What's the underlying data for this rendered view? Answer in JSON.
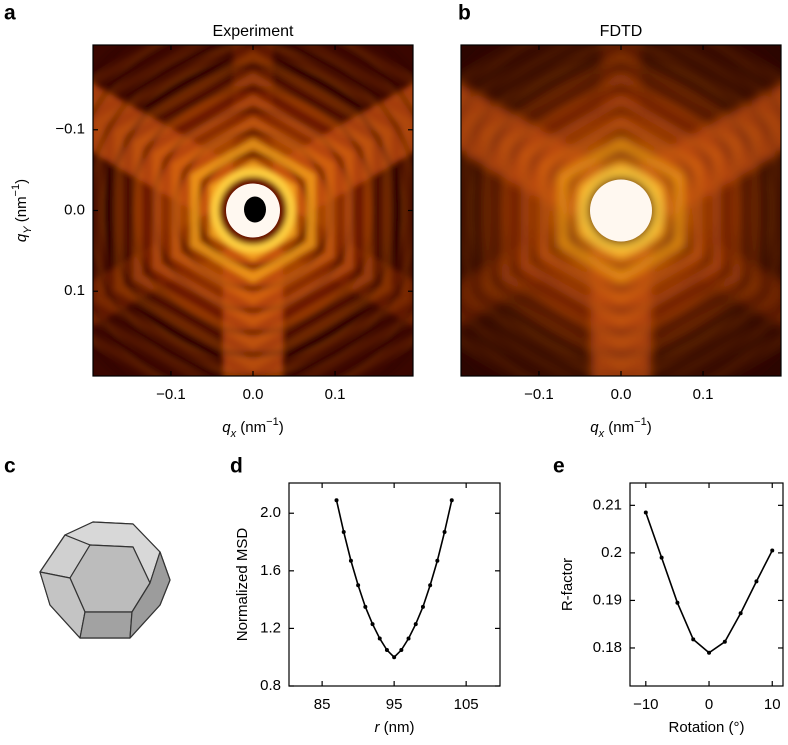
{
  "chart_data": [
    {
      "type": "image",
      "panel": "a",
      "title": "Experiment",
      "style": "experiment",
      "xlabel": [
        {
          "text": "q",
          "style": "italic"
        },
        {
          "text": "x",
          "style": "sub"
        },
        {
          "text": " (nm",
          "style": "plain"
        },
        {
          "text": "−1",
          "style": "sup"
        },
        {
          "text": ")",
          "style": "plain"
        }
      ],
      "ylabel": [
        {
          "text": "q",
          "style": "italic"
        },
        {
          "text": "Y",
          "style": "sub"
        },
        {
          "text": " (nm",
          "style": "plain"
        },
        {
          "text": "−1",
          "style": "sup"
        },
        {
          "text": ")",
          "style": "plain"
        }
      ],
      "xlim": [
        -0.195,
        0.195
      ],
      "ylim": [
        -0.205,
        0.205
      ],
      "y_inverted": true,
      "xticks": [
        {
          "value": -0.1,
          "label": "−0.1"
        },
        {
          "value": 0,
          "label": "0.0"
        },
        0.1
      ],
      "yticks": [
        {
          "value": -0.1,
          "label": "−0.1"
        },
        {
          "value": 0,
          "label": "0.0"
        },
        0.1
      ]
    },
    {
      "type": "image",
      "panel": "b",
      "title": "FDTD",
      "style": "simulation",
      "xlabel": [
        {
          "text": "q",
          "style": "italic"
        },
        {
          "text": "x",
          "style": "sub"
        },
        {
          "text": " (nm",
          "style": "plain"
        },
        {
          "text": "−1",
          "style": "sup"
        },
        {
          "text": ")",
          "style": "plain"
        }
      ],
      "xlim": [
        -0.195,
        0.195
      ],
      "ylim": [
        -0.205,
        0.205
      ],
      "y_inverted": true,
      "xticks": [
        {
          "value": -0.1,
          "label": "−0.1"
        },
        {
          "value": 0,
          "label": "0.0"
        },
        0.1
      ]
    },
    {
      "type": "illustration",
      "panel": "c"
    },
    {
      "type": "line",
      "panel": "d",
      "color": "#000000",
      "xlabel": [
        {
          "text": "r",
          "style": "italic"
        },
        {
          "text": " (nm)",
          "style": "plain"
        }
      ],
      "ylabel": [
        {
          "text": "Normalized MSD",
          "style": "plain"
        }
      ],
      "xlim": [
        80.4,
        109.7
      ],
      "ylim": [
        0.8,
        2.21
      ],
      "xticks": [
        85,
        95,
        105
      ],
      "yticks": [
        0.8,
        1.2,
        1.6,
        {
          "value": 2.0,
          "label": "2.0"
        }
      ],
      "x": [
        87,
        88,
        89,
        90,
        91,
        92,
        93,
        94,
        95,
        96,
        97,
        98,
        99,
        100,
        101,
        102,
        103
      ],
      "values": [
        2.09,
        1.87,
        1.67,
        1.5,
        1.35,
        1.23,
        1.13,
        1.05,
        1.0,
        1.05,
        1.13,
        1.23,
        1.35,
        1.5,
        1.67,
        1.87,
        2.09
      ]
    },
    {
      "type": "line",
      "panel": "e",
      "color": "#000000",
      "xlabel": [
        {
          "text": "Rotation (°)",
          "style": "plain"
        }
      ],
      "ylabel": [
        {
          "text": "R-factor",
          "style": "plain"
        }
      ],
      "xlim": [
        -12.5,
        11.7
      ],
      "ylim": [
        0.172,
        0.2147
      ],
      "xticks": [
        {
          "value": -10,
          "label": "−10"
        },
        0,
        10
      ],
      "yticks": [
        0.18,
        0.19,
        0.2,
        0.21
      ],
      "x": [
        -10,
        -7.5,
        -5,
        -2.5,
        0,
        2.5,
        5,
        7.5,
        10
      ],
      "values": [
        0.2085,
        0.199,
        0.1895,
        0.1818,
        0.179,
        0.1813,
        0.1873,
        0.194,
        0.2005
      ]
    }
  ]
}
